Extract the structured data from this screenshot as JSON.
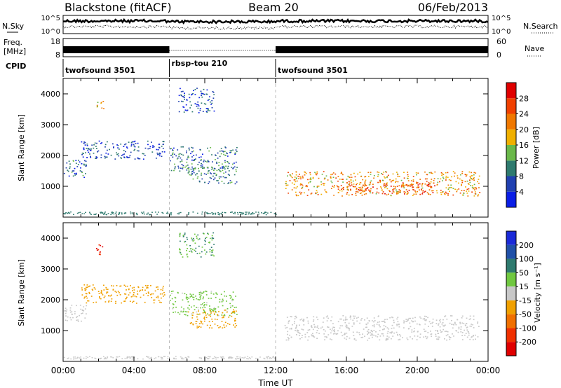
{
  "header": {
    "station": "Blackstone (fitACF)",
    "beam": "Beam 20",
    "date": "06/Feb/2013"
  },
  "top_panels": {
    "nsky_label": "N.Sky",
    "nsky_ticks": [
      "10^5",
      "10^0"
    ],
    "nsearch_label": "N.Search",
    "freq_label_1": "Freq.",
    "freq_label_2": "[MHz]",
    "freq_ticks": [
      "18",
      "8"
    ],
    "nave_label": "Nave",
    "nave_ticks": [
      "60",
      "0"
    ],
    "cpid_label": "CPID",
    "cpid_segments": [
      {
        "name": "twofsound 3501",
        "start": 0,
        "end": 6.0
      },
      {
        "name": "rbsp-tou 210",
        "start": 6.0,
        "end": 12.0
      },
      {
        "name": "twofsound 3501",
        "start": 12.0,
        "end": 24.0
      }
    ],
    "freq_bands": [
      {
        "start": 0.0,
        "end": 6.0
      },
      {
        "start": 12.0,
        "end": 24.0
      }
    ]
  },
  "chart_data": [
    {
      "type": "heatmap",
      "name": "power",
      "ylabel": "Slant Range [km]",
      "ylim": [
        0,
        4500
      ],
      "yticks": [
        "1000",
        "2000",
        "3000",
        "4000"
      ],
      "xlim": [
        0,
        24
      ],
      "xticks": [
        "00:00",
        "04:00",
        "08:00",
        "12:00",
        "16:00",
        "20:00",
        "00:00"
      ],
      "colorbar_label": "Power [dB]",
      "colorbar_ticks": [
        "4",
        "8",
        "12",
        "16",
        "20",
        "24",
        "28"
      ],
      "colorbar_colors": [
        "#0a1ee6",
        "#2040b0",
        "#2e7a6e",
        "#6ab84a",
        "#f0b000",
        "#f07800",
        "#f04000",
        "#e00000"
      ],
      "regions": [
        {
          "t0": 0.0,
          "t1": 1.3,
          "r0": 1300,
          "r1": 1900,
          "value": 8
        },
        {
          "t0": 1.0,
          "t1": 5.8,
          "r0": 1900,
          "r1": 2500,
          "value": 6
        },
        {
          "t0": 1.8,
          "t1": 2.3,
          "r0": 3450,
          "r1": 3800,
          "value": 18
        },
        {
          "t0": 6.0,
          "t1": 9.8,
          "r0": 1500,
          "r1": 2300,
          "value": 9
        },
        {
          "t0": 7.0,
          "t1": 9.8,
          "r0": 1100,
          "r1": 1700,
          "value": 10
        },
        {
          "t0": 6.5,
          "t1": 8.5,
          "r0": 3400,
          "r1": 4200,
          "value": 6
        },
        {
          "t0": 12.5,
          "t1": 23.5,
          "r0": 700,
          "r1": 1500,
          "value": 20
        },
        {
          "t0": 16.0,
          "t1": 21.0,
          "r0": 750,
          "r1": 1150,
          "value": 26
        }
      ]
    },
    {
      "type": "heatmap",
      "name": "velocity",
      "ylabel": "Slant Range [km]",
      "ylim": [
        0,
        4500
      ],
      "yticks": [
        "1000",
        "2000",
        "3000",
        "4000"
      ],
      "xlim": [
        0,
        24
      ],
      "xticks": [
        "00:00",
        "04:00",
        "08:00",
        "12:00",
        "16:00",
        "20:00",
        "00:00"
      ],
      "xlabel": "Time UT",
      "colorbar_label": "Velocity [m s⁻¹]",
      "colorbar_ticks": [
        "200",
        "100",
        "50",
        "15",
        "-15",
        "-50",
        "-100",
        "-200"
      ],
      "colorbar_colors": [
        "#1a2ad8",
        "#2050a8",
        "#2e7a6e",
        "#70c840",
        "#c8c8c8",
        "#f0a000",
        "#f07000",
        "#f03000",
        "#e00000"
      ],
      "regions": [
        {
          "t0": 0.0,
          "t1": 1.3,
          "r0": 1300,
          "r1": 1900,
          "value": 0
        },
        {
          "t0": 1.0,
          "t1": 5.8,
          "r0": 1900,
          "r1": 2500,
          "value": -30
        },
        {
          "t0": 1.8,
          "t1": 2.3,
          "r0": 3400,
          "r1": 3800,
          "value": -150
        },
        {
          "t0": 6.0,
          "t1": 9.8,
          "r0": 1500,
          "r1": 2300,
          "value": 20
        },
        {
          "t0": 7.0,
          "t1": 9.8,
          "r0": 1100,
          "r1": 1700,
          "value": -40
        },
        {
          "t0": 6.5,
          "t1": 8.5,
          "r0": 3400,
          "r1": 4200,
          "value": 30
        },
        {
          "t0": 12.5,
          "t1": 23.5,
          "r0": 700,
          "r1": 1500,
          "value": 0
        }
      ]
    }
  ]
}
